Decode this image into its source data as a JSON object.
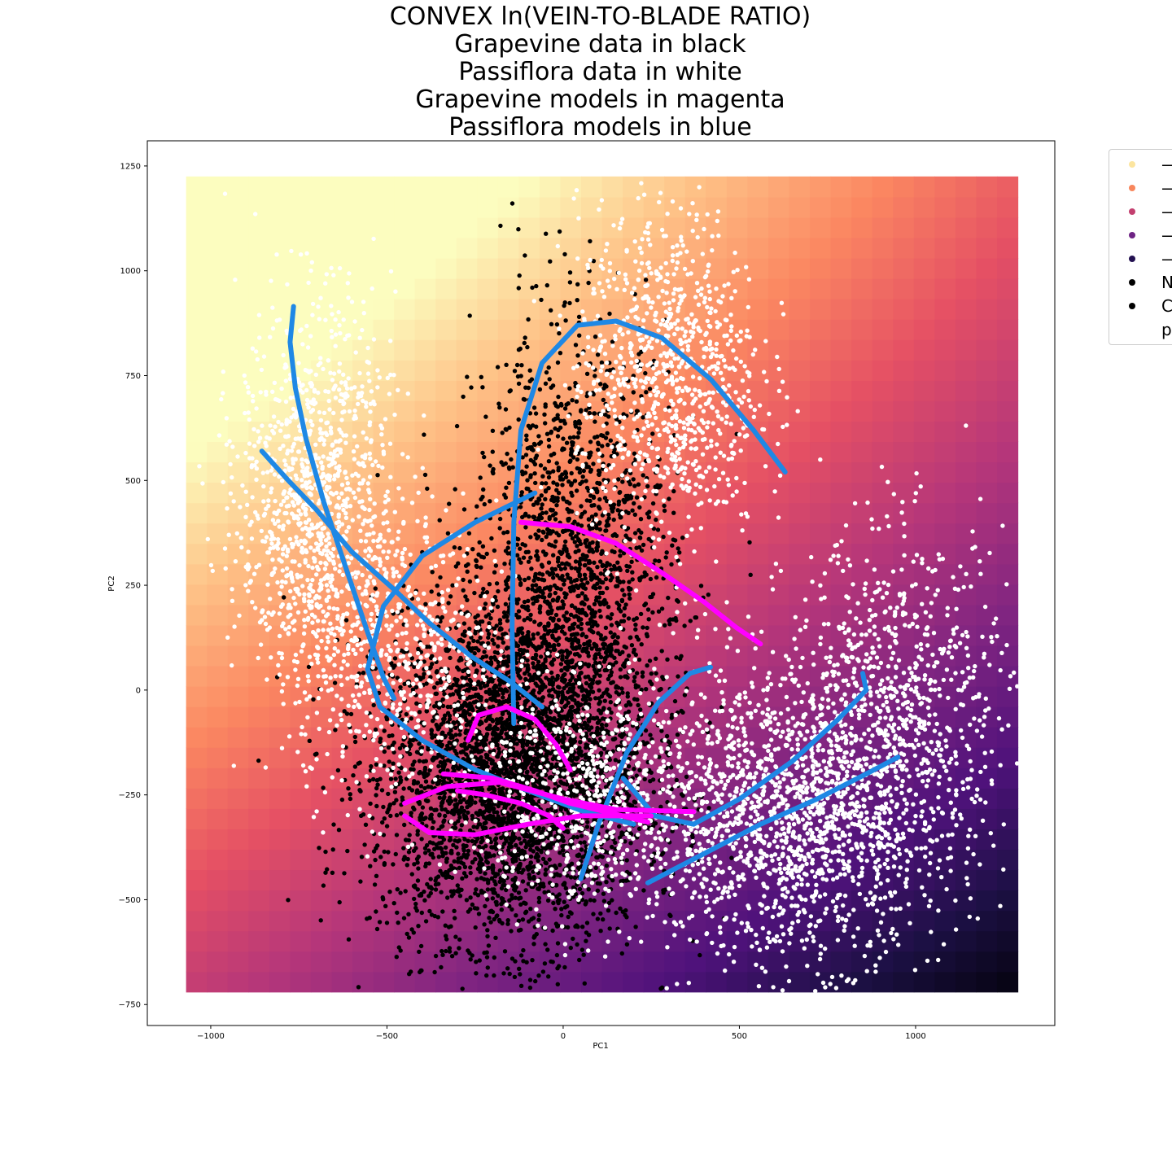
{
  "chart_data": {
    "type": "scatter",
    "title_lines": [
      "CONVEX ln(VEIN-TO-BLADE RATIO)",
      "Grapevine data in black",
      "Passiflora data in white",
      "Grapevine models in magenta",
      "Passiflora models in blue"
    ],
    "xlabel": "PC1",
    "ylabel": "PC2",
    "xlim": [
      -1180,
      1395
    ],
    "ylim": [
      -800,
      1310
    ],
    "xticks": [
      -1000,
      -500,
      0,
      500,
      1000
    ],
    "yticks": [
      -750,
      -500,
      -250,
      0,
      250,
      500,
      750,
      1000,
      1250
    ],
    "xtick_labels": [
      "−1000",
      "−500",
      "0",
      "500",
      "1000"
    ],
    "ytick_labels": [
      "−750",
      "−500",
      "−250",
      "0",
      "250",
      "500",
      "750",
      "1000",
      "1250"
    ],
    "background": {
      "type": "heatmap",
      "colormap": "magma",
      "x_range": [
        -1070,
        1290
      ],
      "y_range": [
        -720,
        1225
      ],
      "description_value_gradient": "high at top-left, low at bottom-right"
    },
    "colors": {
      "grapevine_data": "#000000",
      "passiflora_data": "#ffffff",
      "grapevine_models": "#ff00ff",
      "passiflora_models": "#1e88e5"
    },
    "grapevine_data_clusters": [
      {
        "center": [
          -150,
          -200
        ],
        "spread": [
          190,
          200
        ],
        "n": 3800
      },
      {
        "center": [
          30,
          250
        ],
        "spread": [
          140,
          300
        ],
        "n": 1800
      }
    ],
    "passiflora_data_clusters": [
      {
        "center": [
          -700,
          450
        ],
        "spread": [
          110,
          230
        ],
        "n": 1100
      },
      {
        "center": [
          -470,
          90
        ],
        "spread": [
          140,
          180
        ],
        "n": 500
      },
      {
        "center": [
          300,
          750
        ],
        "spread": [
          130,
          200
        ],
        "n": 900
      },
      {
        "center": [
          650,
          -300
        ],
        "spread": [
          220,
          170
        ],
        "n": 1600
      },
      {
        "center": [
          950,
          -30
        ],
        "spread": [
          160,
          200
        ],
        "n": 700
      },
      {
        "center": [
          60,
          -250
        ],
        "spread": [
          160,
          130
        ],
        "n": 600
      }
    ],
    "series": [
      {
        "name": "",
        "color": "#1e88e5",
        "points": [
          [
            -765,
            915
          ],
          [
            -775,
            830
          ],
          [
            -760,
            720
          ],
          [
            -730,
            600
          ],
          [
            -680,
            450
          ],
          [
            -620,
            300
          ],
          [
            -560,
            150
          ],
          [
            -510,
            30
          ],
          [
            -480,
            -20
          ]
        ]
      },
      {
        "name": "",
        "color": "#1e88e5",
        "points": [
          [
            -855,
            570
          ],
          [
            -780,
            500
          ],
          [
            -700,
            430
          ],
          [
            -600,
            330
          ],
          [
            -480,
            240
          ],
          [
            -380,
            160
          ],
          [
            -260,
            80
          ],
          [
            -150,
            20
          ],
          [
            -60,
            -40
          ]
        ]
      },
      {
        "name": "",
        "color": "#1e88e5",
        "points": [
          [
            -80,
            470
          ],
          [
            -250,
            400
          ],
          [
            -400,
            320
          ],
          [
            -510,
            200
          ],
          [
            -555,
            50
          ],
          [
            -520,
            -40
          ],
          [
            -400,
            -120
          ],
          [
            -250,
            -190
          ],
          [
            -100,
            -240
          ],
          [
            60,
            -290
          ],
          [
            200,
            -320
          ]
        ]
      },
      {
        "name": "",
        "color": "#1e88e5",
        "points": [
          [
            -140,
            -80
          ],
          [
            -145,
            150
          ],
          [
            -140,
            400
          ],
          [
            -120,
            620
          ],
          [
            -60,
            780
          ],
          [
            40,
            870
          ],
          [
            150,
            880
          ],
          [
            280,
            840
          ],
          [
            420,
            740
          ],
          [
            540,
            620
          ],
          [
            630,
            520
          ]
        ]
      },
      {
        "name": "",
        "color": "#1e88e5",
        "points": [
          [
            50,
            -450
          ],
          [
            100,
            -320
          ],
          [
            180,
            -150
          ],
          [
            270,
            -30
          ],
          [
            360,
            40
          ],
          [
            420,
            55
          ]
        ]
      },
      {
        "name": "",
        "color": "#1e88e5",
        "points": [
          [
            170,
            -210
          ],
          [
            260,
            -300
          ],
          [
            370,
            -320
          ],
          [
            500,
            -260
          ],
          [
            650,
            -170
          ],
          [
            780,
            -70
          ],
          [
            860,
            0
          ],
          [
            850,
            40
          ]
        ]
      },
      {
        "name": "",
        "color": "#1e88e5",
        "points": [
          [
            240,
            -460
          ],
          [
            400,
            -390
          ],
          [
            560,
            -320
          ],
          [
            720,
            -260
          ],
          [
            860,
            -200
          ],
          [
            950,
            -160
          ]
        ]
      },
      {
        "name": "",
        "color": "#ff00ff",
        "points": [
          [
            -120,
            400
          ],
          [
            20,
            390
          ],
          [
            150,
            350
          ],
          [
            280,
            280
          ],
          [
            400,
            210
          ],
          [
            490,
            150
          ],
          [
            560,
            110
          ]
        ]
      },
      {
        "name": "",
        "color": "#ff00ff",
        "points": [
          [
            -270,
            -120
          ],
          [
            -240,
            -60
          ],
          [
            -160,
            -40
          ],
          [
            -80,
            -70
          ],
          [
            -20,
            -130
          ],
          [
            20,
            -190
          ]
        ]
      },
      {
        "name": "",
        "color": "#ff00ff",
        "points": [
          [
            -450,
            -300
          ],
          [
            -380,
            -340
          ],
          [
            -250,
            -345
          ],
          [
            -100,
            -320
          ],
          [
            50,
            -300
          ],
          [
            250,
            -300
          ]
        ]
      },
      {
        "name": "",
        "color": "#ff00ff",
        "points": [
          [
            -450,
            -270
          ],
          [
            -330,
            -230
          ],
          [
            -180,
            -220
          ],
          [
            0,
            -260
          ],
          [
            150,
            -285
          ],
          [
            370,
            -290
          ]
        ]
      },
      {
        "name": "",
        "color": "#ff00ff",
        "points": [
          [
            -340,
            -200
          ],
          [
            -200,
            -210
          ],
          [
            -80,
            -240
          ],
          [
            20,
            -270
          ],
          [
            120,
            -290
          ],
          [
            240,
            -315
          ]
        ]
      },
      {
        "name": "",
        "color": "#ff00ff",
        "points": [
          [
            -300,
            -240
          ],
          [
            -220,
            -250
          ],
          [
            -120,
            -270
          ],
          [
            -40,
            -300
          ],
          [
            0,
            -330
          ]
        ]
      }
    ]
  },
  "legend": {
    "items": [
      {
        "color": "#fce59f",
        "label": "—"
      },
      {
        "color": "#f8865c",
        "label": "—"
      },
      {
        "color": "#c33f6f",
        "label": "—"
      },
      {
        "color": "#6e2384",
        "label": "—"
      },
      {
        "color": "#231151",
        "label": "—"
      },
      {
        "color": "#000000",
        "label": "N"
      },
      {
        "color": "#000000",
        "label": "C"
      },
      {
        "color": "",
        "label": "p"
      }
    ]
  }
}
